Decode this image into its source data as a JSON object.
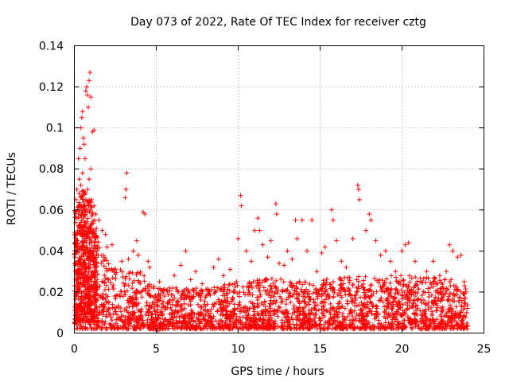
{
  "chart_data": {
    "type": "scatter",
    "title": "Day 073 of 2022, Rate Of TEC Index for receiver cztg",
    "xlabel": "GPS time / hours",
    "ylabel": "ROTI / TECUs",
    "xlim": [
      0,
      25
    ],
    "ylim": [
      0,
      0.14
    ],
    "xticks": [
      "0",
      "5",
      "10",
      "15",
      "20",
      "25"
    ],
    "yticks": [
      "0",
      "0.02",
      "0.04",
      "0.06",
      "0.08",
      "0.1",
      "0.12",
      "0.14"
    ],
    "grid": true,
    "marker": "+",
    "color": "#ff0000",
    "series": [
      {
        "name": "ROTI",
        "points": [
          [
            0.05,
            0.005
          ],
          [
            0.1,
            0.065
          ],
          [
            0.15,
            0.07
          ],
          [
            0.2,
            0.06
          ],
          [
            0.25,
            0.085
          ],
          [
            0.3,
            0.075
          ],
          [
            0.35,
            0.09
          ],
          [
            0.4,
            0.1
          ],
          [
            0.45,
            0.105
          ],
          [
            0.5,
            0.108
          ],
          [
            0.55,
            0.095
          ],
          [
            0.6,
            0.092
          ],
          [
            0.7,
            0.118
          ],
          [
            0.75,
            0.12
          ],
          [
            0.8,
            0.116
          ],
          [
            0.9,
            0.123
          ],
          [
            0.95,
            0.127
          ],
          [
            1.0,
            0.115
          ],
          [
            0.85,
            0.11
          ],
          [
            1.1,
            0.098
          ],
          [
            1.2,
            0.099
          ],
          [
            0.65,
            0.085
          ],
          [
            0.5,
            0.078
          ],
          [
            0.4,
            0.072
          ],
          [
            0.3,
            0.068
          ],
          [
            1.3,
            0.058
          ],
          [
            1.2,
            0.062
          ],
          [
            1.5,
            0.055
          ],
          [
            1.7,
            0.05
          ],
          [
            1.9,
            0.048
          ],
          [
            0.2,
            0.045
          ],
          [
            0.3,
            0.05
          ],
          [
            0.45,
            0.055
          ],
          [
            0.6,
            0.06
          ],
          [
            0.8,
            0.07
          ],
          [
            0.9,
            0.075
          ],
          [
            1.0,
            0.08
          ],
          [
            1.05,
            0.065
          ],
          [
            0.95,
            0.04
          ],
          [
            0.7,
            0.045
          ],
          [
            3.2,
            0.078
          ],
          [
            3.15,
            0.07
          ],
          [
            3.1,
            0.066
          ],
          [
            4.2,
            0.059
          ],
          [
            4.3,
            0.058
          ],
          [
            2.3,
            0.043
          ],
          [
            2.0,
            0.042
          ],
          [
            2.9,
            0.035
          ],
          [
            3.3,
            0.036
          ],
          [
            3.6,
            0.04
          ],
          [
            3.8,
            0.045
          ],
          [
            3.9,
            0.038
          ],
          [
            4.5,
            0.035
          ],
          [
            4.6,
            0.032
          ],
          [
            5.2,
            0.025
          ],
          [
            5.5,
            0.018
          ],
          [
            5.8,
            0.022
          ],
          [
            6.1,
            0.028
          ],
          [
            6.5,
            0.033
          ],
          [
            6.8,
            0.04
          ],
          [
            7.1,
            0.026
          ],
          [
            7.4,
            0.03
          ],
          [
            7.8,
            0.024
          ],
          [
            8.2,
            0.02
          ],
          [
            8.5,
            0.032
          ],
          [
            8.8,
            0.036
          ],
          [
            9.1,
            0.028
          ],
          [
            9.5,
            0.031
          ],
          [
            9.9,
            0.025
          ],
          [
            10.0,
            0.046
          ],
          [
            10.15,
            0.067
          ],
          [
            10.2,
            0.062
          ],
          [
            10.5,
            0.04
          ],
          [
            10.8,
            0.035
          ],
          [
            11.0,
            0.05
          ],
          [
            11.2,
            0.056
          ],
          [
            11.3,
            0.05
          ],
          [
            11.5,
            0.043
          ],
          [
            11.8,
            0.037
          ],
          [
            12.0,
            0.045
          ],
          [
            12.3,
            0.063
          ],
          [
            12.35,
            0.058
          ],
          [
            12.5,
            0.034
          ],
          [
            12.8,
            0.033
          ],
          [
            13.0,
            0.04
          ],
          [
            13.3,
            0.036
          ],
          [
            13.5,
            0.055
          ],
          [
            13.6,
            0.046
          ],
          [
            13.9,
            0.055
          ],
          [
            14.2,
            0.04
          ],
          [
            14.5,
            0.055
          ],
          [
            14.8,
            0.03
          ],
          [
            15.1,
            0.039
          ],
          [
            15.3,
            0.042
          ],
          [
            15.7,
            0.06
          ],
          [
            15.8,
            0.055
          ],
          [
            16.0,
            0.045
          ],
          [
            16.3,
            0.035
          ],
          [
            16.6,
            0.032
          ],
          [
            17.0,
            0.046
          ],
          [
            17.3,
            0.072
          ],
          [
            17.35,
            0.07
          ],
          [
            17.4,
            0.065
          ],
          [
            17.8,
            0.05
          ],
          [
            18.0,
            0.058
          ],
          [
            18.1,
            0.055
          ],
          [
            18.4,
            0.045
          ],
          [
            18.7,
            0.038
          ],
          [
            19.0,
            0.04
          ],
          [
            19.3,
            0.035
          ],
          [
            19.6,
            0.03
          ],
          [
            20.0,
            0.04
          ],
          [
            20.2,
            0.043
          ],
          [
            20.4,
            0.044
          ],
          [
            20.8,
            0.035
          ],
          [
            21.1,
            0.025
          ],
          [
            21.5,
            0.03
          ],
          [
            21.9,
            0.035
          ],
          [
            22.3,
            0.028
          ],
          [
            22.7,
            0.03
          ],
          [
            22.9,
            0.043
          ],
          [
            23.1,
            0.04
          ],
          [
            23.4,
            0.037
          ],
          [
            23.6,
            0.038
          ],
          [
            23.8,
            0.025
          ],
          [
            23.9,
            0.02
          ],
          [
            24.0,
            0.012
          ],
          [
            5.0,
            0.005
          ],
          [
            6.0,
            0.004
          ],
          [
            7.5,
            0.003
          ],
          [
            9.0,
            0.006
          ],
          [
            11.0,
            0.004
          ],
          [
            13.0,
            0.005
          ],
          [
            15.0,
            0.006
          ],
          [
            17.0,
            0.004
          ],
          [
            19.0,
            0.005
          ],
          [
            21.0,
            0.004
          ],
          [
            23.0,
            0.005
          ],
          [
            4.8,
            0.002
          ],
          [
            5.1,
            0.001
          ]
        ],
        "band": {
          "comment": "dense cloud of ROTI values spanning 0–24 h",
          "x_range": [
            0,
            24
          ],
          "y_min": 0.002,
          "y_envelope": [
            [
              0,
              0.06
            ],
            [
              0.5,
              0.07
            ],
            [
              1,
              0.065
            ],
            [
              1.5,
              0.045
            ],
            [
              2,
              0.035
            ],
            [
              3,
              0.03
            ],
            [
              4,
              0.03
            ],
            [
              5,
              0.022
            ],
            [
              6,
              0.022
            ],
            [
              8,
              0.022
            ],
            [
              10,
              0.025
            ],
            [
              12,
              0.027
            ],
            [
              14,
              0.025
            ],
            [
              16,
              0.027
            ],
            [
              18,
              0.028
            ],
            [
              20,
              0.028
            ],
            [
              22,
              0.028
            ],
            [
              24,
              0.025
            ]
          ]
        }
      }
    ]
  }
}
